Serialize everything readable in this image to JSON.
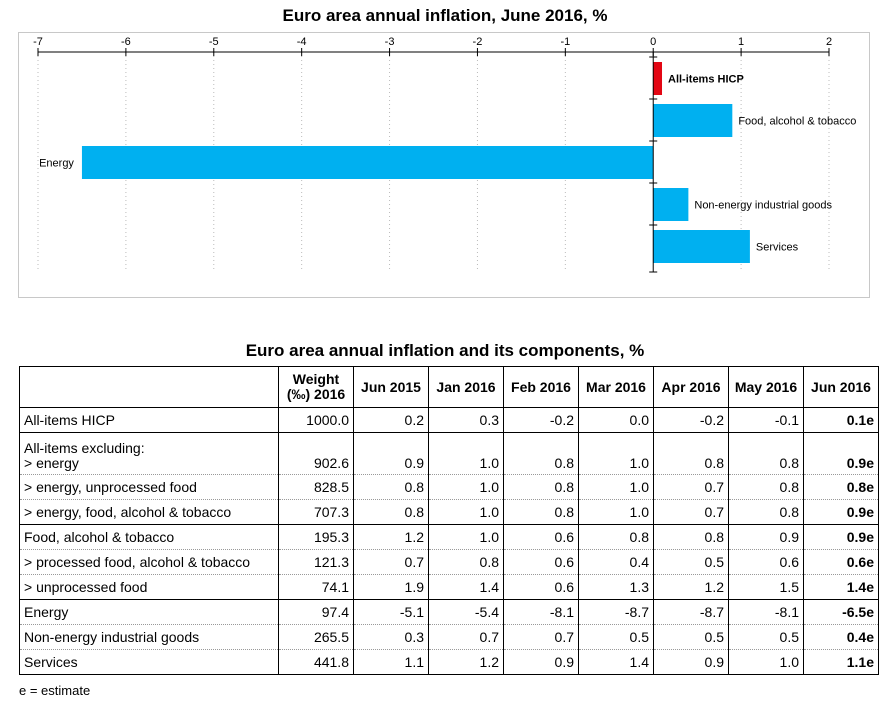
{
  "chart_data": {
    "type": "bar",
    "orientation": "horizontal",
    "title": "Euro area annual inflation, June 2016, %",
    "xlim": [
      -7,
      2
    ],
    "ticks": [
      -7,
      -6,
      -5,
      -4,
      -3,
      -2,
      -1,
      0,
      1,
      2
    ],
    "categories": [
      "All-items HICP",
      "Food, alcohol & tobacco",
      "Energy",
      "Non-energy industrial goods",
      "Services"
    ],
    "values": [
      0.1,
      0.9,
      -6.5,
      0.4,
      1.1
    ],
    "colors": [
      "#e30613",
      "#00b0f0",
      "#00b0f0",
      "#00b0f0",
      "#00b0f0"
    ]
  },
  "table": {
    "title": "Euro area annual inflation and its components, %",
    "weight_header_line1": "Weight",
    "weight_header_line2": "(‰) 2016",
    "columns": [
      "Jun 2015",
      "Jan 2016",
      "Feb 2016",
      "Mar 2016",
      "Apr 2016",
      "May 2016",
      "Jun 2016"
    ],
    "rows": [
      {
        "label": "All-items HICP",
        "weight": "1000.0",
        "values": [
          "0.2",
          "0.3",
          "-0.2",
          "0.0",
          "-0.2",
          "-0.1",
          "0.1e"
        ]
      },
      {
        "label_prefix": "All-items excluding:",
        "label": "> energy",
        "weight": "902.6",
        "values": [
          "0.9",
          "1.0",
          "0.8",
          "1.0",
          "0.8",
          "0.8",
          "0.9e"
        ]
      },
      {
        "label": "> energy, unprocessed food",
        "weight": "828.5",
        "values": [
          "0.8",
          "1.0",
          "0.8",
          "1.0",
          "0.7",
          "0.8",
          "0.8e"
        ]
      },
      {
        "label": "> energy, food, alcohol & tobacco",
        "weight": "707.3",
        "values": [
          "0.8",
          "1.0",
          "0.8",
          "1.0",
          "0.7",
          "0.8",
          "0.9e"
        ]
      },
      {
        "label": "Food, alcohol & tobacco",
        "weight": "195.3",
        "values": [
          "1.2",
          "1.0",
          "0.6",
          "0.8",
          "0.8",
          "0.9",
          "0.9e"
        ]
      },
      {
        "label": "> processed food, alcohol & tobacco",
        "weight": "121.3",
        "values": [
          "0.7",
          "0.8",
          "0.6",
          "0.4",
          "0.5",
          "0.6",
          "0.6e"
        ]
      },
      {
        "label": "> unprocessed food",
        "weight": "74.1",
        "values": [
          "1.9",
          "1.4",
          "0.6",
          "1.3",
          "1.2",
          "1.5",
          "1.4e"
        ]
      },
      {
        "label": "Energy",
        "weight": "97.4",
        "values": [
          "-5.1",
          "-5.4",
          "-8.1",
          "-8.7",
          "-8.7",
          "-8.1",
          "-6.5e"
        ]
      },
      {
        "label": "Non-energy industrial goods",
        "weight": "265.5",
        "values": [
          "0.3",
          "0.7",
          "0.7",
          "0.5",
          "0.5",
          "0.5",
          "0.4e"
        ]
      },
      {
        "label": "Services",
        "weight": "441.8",
        "values": [
          "1.1",
          "1.2",
          "0.9",
          "1.4",
          "0.9",
          "1.0",
          "1.1e"
        ]
      }
    ]
  },
  "footnote": "e = estimate"
}
